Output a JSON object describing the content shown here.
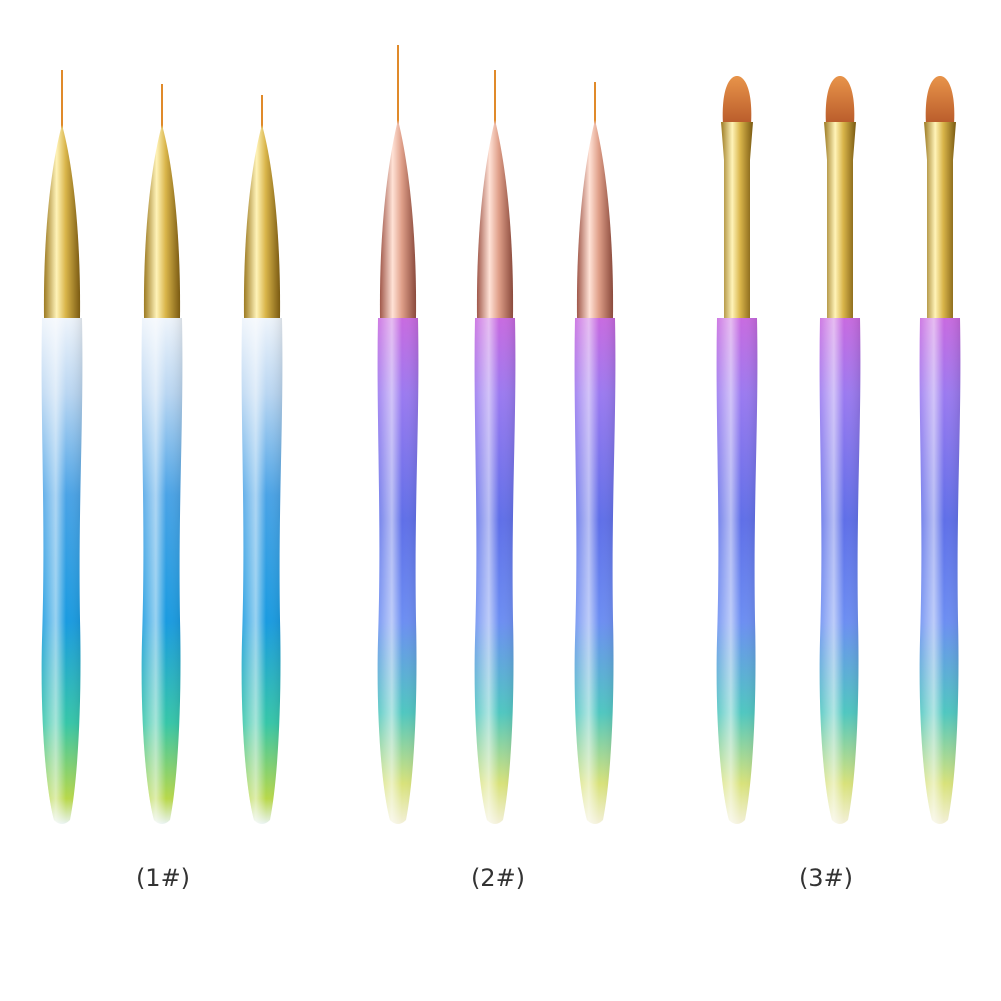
{
  "labels": [
    "(1#)",
    "(2#)",
    "(3#)"
  ]
}
